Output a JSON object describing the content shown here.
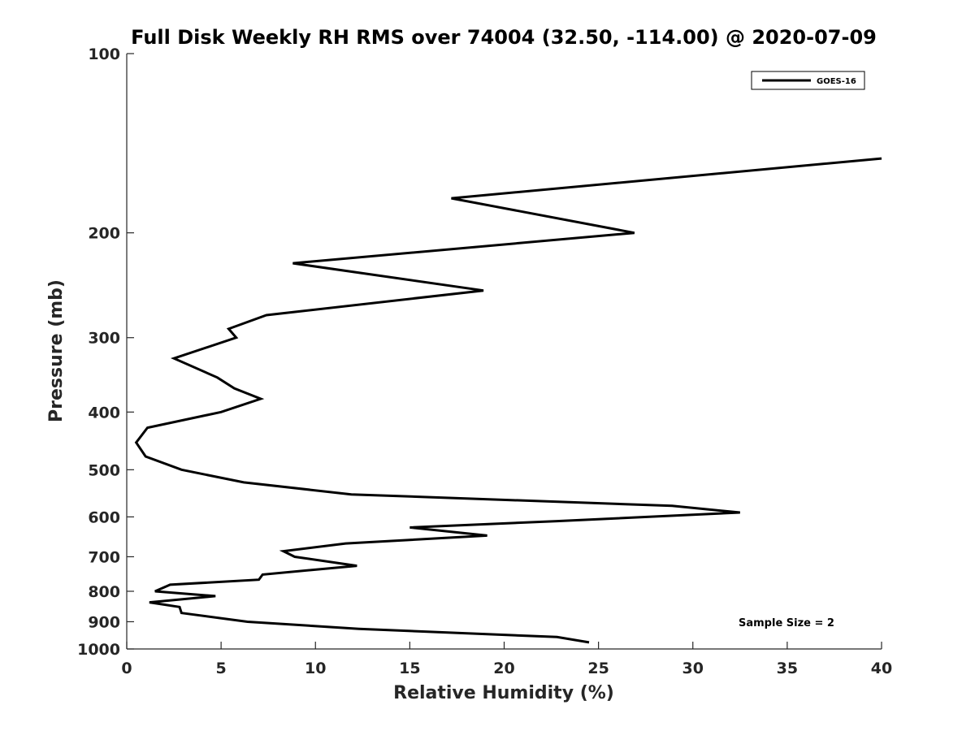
{
  "chart_data": {
    "type": "line",
    "title": "Full Disk Weekly RH RMS over 74004 (32.50, -114.00) @ 2020-07-09",
    "xlabel": "Relative Humidity (%)",
    "ylabel": "Pressure (mb)",
    "xlim": [
      0,
      40
    ],
    "ylim": [
      100,
      1000
    ],
    "y_scale": "log",
    "y_reversed": true,
    "x_ticks": [
      0,
      5,
      10,
      15,
      20,
      25,
      30,
      35,
      40
    ],
    "y_ticks": [
      100,
      200,
      300,
      400,
      500,
      600,
      700,
      800,
      900,
      1000
    ],
    "grid": false,
    "legend_position": "top-right",
    "annotation": "Sample Size = 2",
    "series": [
      {
        "name": "GOES-16",
        "color": "#000000",
        "points": [
          [
            40.0,
            150
          ],
          [
            17.2,
            175
          ],
          [
            26.9,
            200
          ],
          [
            8.8,
            225
          ],
          [
            18.9,
            250
          ],
          [
            7.4,
            275
          ],
          [
            5.4,
            290
          ],
          [
            5.8,
            300
          ],
          [
            2.5,
            325
          ],
          [
            4.8,
            350
          ],
          [
            5.7,
            365
          ],
          [
            7.1,
            380
          ],
          [
            5.0,
            400
          ],
          [
            1.1,
            425
          ],
          [
            0.5,
            450
          ],
          [
            1.0,
            475
          ],
          [
            2.9,
            500
          ],
          [
            6.2,
            525
          ],
          [
            11.9,
            550
          ],
          [
            28.9,
            575
          ],
          [
            32.5,
            590
          ],
          [
            22.8,
            610
          ],
          [
            15.0,
            625
          ],
          [
            19.1,
            645
          ],
          [
            11.6,
            665
          ],
          [
            8.3,
            685
          ],
          [
            8.9,
            700
          ],
          [
            12.2,
            725
          ],
          [
            7.2,
            750
          ],
          [
            7.0,
            765
          ],
          [
            2.3,
            780
          ],
          [
            1.5,
            800
          ],
          [
            4.7,
            815
          ],
          [
            1.2,
            835
          ],
          [
            2.8,
            850
          ],
          [
            2.9,
            870
          ],
          [
            6.4,
            900
          ],
          [
            12.3,
            925
          ],
          [
            22.8,
            955
          ],
          [
            24.5,
            975
          ]
        ]
      }
    ]
  }
}
